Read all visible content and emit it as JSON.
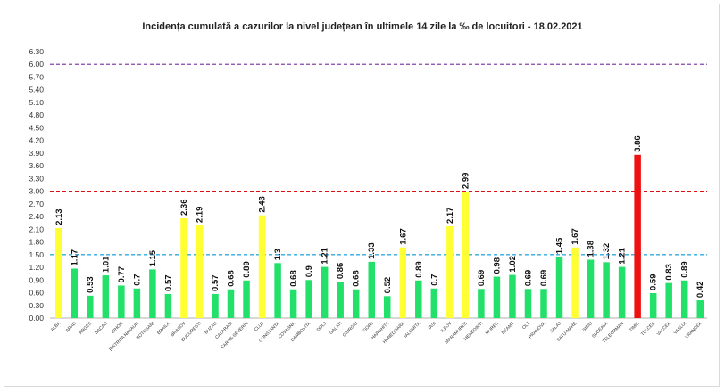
{
  "chart_data": {
    "type": "bar",
    "title": "Incidența cumulată a cazurilor la nivel județean în ultimele 14 zile la ‰ de locuitori - 18.02.2021",
    "xlabel": "",
    "ylabel": "",
    "ylim": [
      0,
      6.3
    ],
    "yticks": [
      "0.00",
      "0.30",
      "0.60",
      "0.90",
      "1.20",
      "1.50",
      "1.80",
      "2.10",
      "2.40",
      "2.70",
      "3.00",
      "3.30",
      "3.60",
      "3.90",
      "4.20",
      "4.50",
      "4.80",
      "5.10",
      "5.40",
      "5.70",
      "6.00",
      "6.30"
    ],
    "categories": [
      "ALBA",
      "ARAD",
      "ARGES",
      "BACAU",
      "BIHOR",
      "BISTRITA NASAUD",
      "BOTOSANI",
      "BRAILA",
      "BRASOV",
      "BUCURESTI",
      "BUZAU",
      "CALARASI",
      "CARAS-SEVERIN",
      "CLUJ",
      "CONSTANTA",
      "COVASNA",
      "DAMBOVITA",
      "DOLJ",
      "GALATI",
      "GIURGIU",
      "GORJ",
      "HARGHITA",
      "HUNEDOARA",
      "IALOMITA",
      "IASI",
      "ILFOV",
      "MARAMURES",
      "MEHEDINTI",
      "MURES",
      "NEAMT",
      "OLT",
      "PRAHOVA",
      "SALAJ",
      "SATU-MARE",
      "SIBIU",
      "SUCEAVA",
      "TELEORMAN",
      "TIMIS",
      "TULCEA",
      "VALCEA",
      "VASLUI",
      "VRANCEA"
    ],
    "values": [
      2.13,
      1.17,
      0.53,
      1.01,
      0.77,
      0.7,
      1.15,
      0.57,
      2.36,
      2.19,
      0.57,
      0.68,
      0.89,
      2.43,
      1.3,
      0.68,
      0.9,
      1.21,
      0.86,
      0.68,
      1.33,
      0.52,
      1.67,
      0.89,
      0.7,
      2.17,
      2.99,
      0.69,
      0.98,
      1.02,
      0.69,
      0.69,
      1.45,
      1.67,
      1.38,
      1.32,
      1.21,
      3.86,
      0.59,
      0.83,
      0.89,
      0.42
    ],
    "value_labels": [
      "2.13",
      "1.17",
      "0.53",
      "1.01",
      "0.77",
      "0.7",
      "1.15",
      "0.57",
      "2.36",
      "2.19",
      "0.57",
      "0.68",
      "0.89",
      "2.43",
      "1.3",
      "0.68",
      "0.9",
      "1.21",
      "0.86",
      "0.68",
      "1.33",
      "0.52",
      "1.67",
      "0.89",
      "0.7",
      "2.17",
      "2.99",
      "0.69",
      "0.98",
      "1.02",
      "0.69",
      "0.69",
      "1.45",
      "1.67",
      "1.38",
      "1.32",
      "1.21",
      "3.86",
      "0.59",
      "0.83",
      "0.89",
      "0.42"
    ],
    "colors": {
      "green": "#22e06a",
      "yellow": "#ffff33",
      "red": "#ee1111"
    },
    "thresholds": [
      {
        "value": 1.5,
        "color": "#33aadd"
      },
      {
        "value": 3.0,
        "color": "#dd1111"
      },
      {
        "value": 6.0,
        "color": "#8844aa"
      }
    ],
    "grid": false,
    "legend": "none"
  }
}
